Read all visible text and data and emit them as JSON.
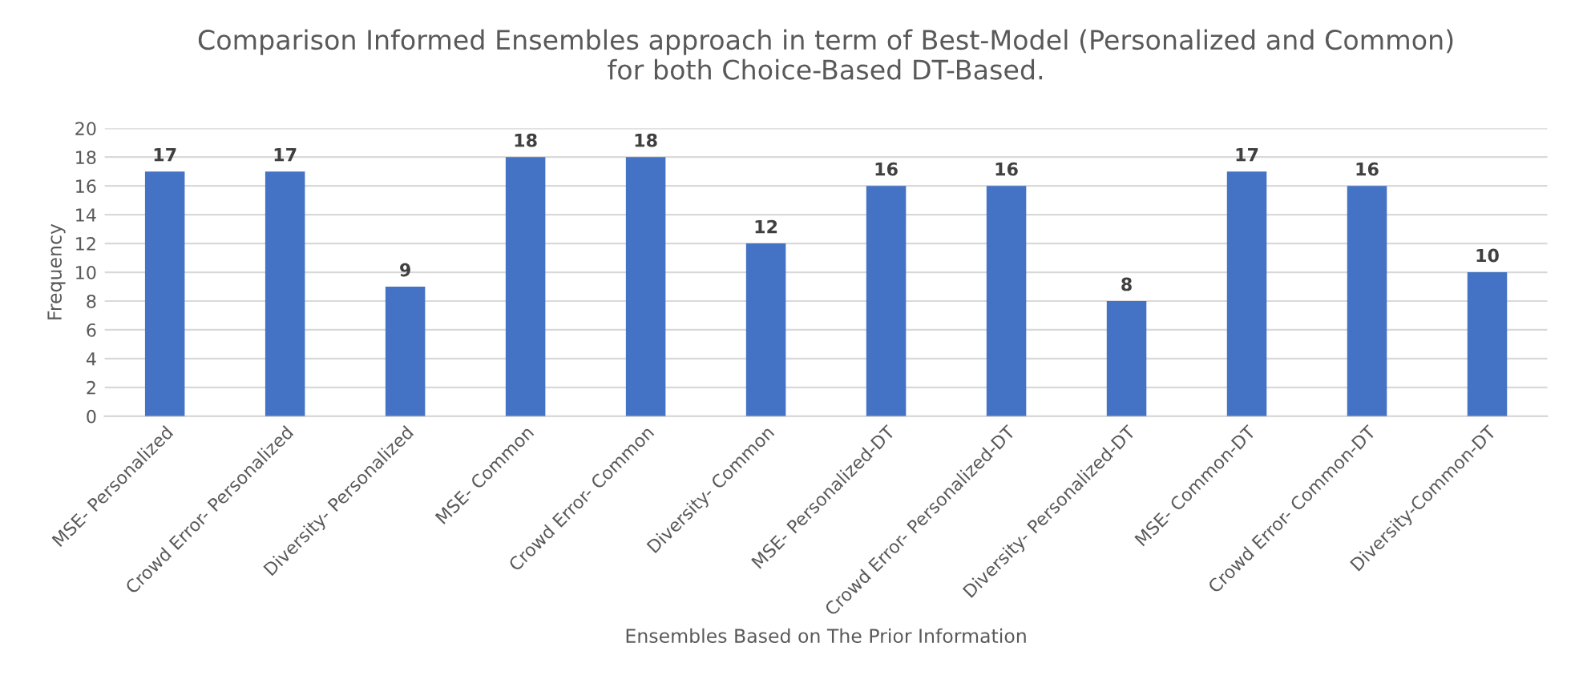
{
  "chart_data": {
    "type": "bar",
    "title": "Comparison Informed Ensembles approach in term of Best-Model (Personalized and Common)\nfor both Choice-Based DT-Based.",
    "xlabel": "Ensembles Based on The Prior Information",
    "ylabel": "Frequency",
    "categories": [
      "MSE- Personalized",
      "Crowd Error- Personalized",
      "Diversity- Personalized",
      "MSE- Common",
      "Crowd Error- Common",
      "Diversity- Common",
      "MSE- Personalized-DT",
      "Crowd Error- Personalized-DT",
      "Diversity- Personalized-DT",
      "MSE- Common-DT",
      "Crowd Error- Common-DT",
      "Diversity-Common-DT"
    ],
    "values": [
      17,
      17,
      9,
      18,
      18,
      12,
      16,
      16,
      8,
      17,
      16,
      10
    ],
    "color": "#4472c4",
    "ylim": [
      0,
      20
    ],
    "yticks": [
      0,
      2,
      4,
      6,
      8,
      10,
      12,
      14,
      16,
      18,
      20
    ],
    "grid": "y",
    "data_labels": true
  }
}
